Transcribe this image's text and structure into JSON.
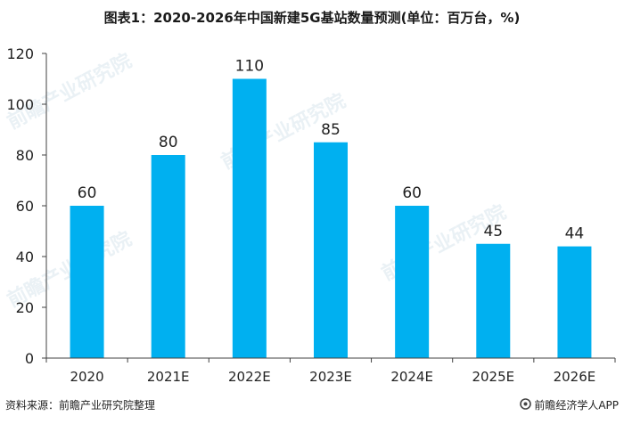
{
  "chart_data": {
    "type": "bar",
    "title": "图表1：2020-2026年中国新建5G基站数量预测(单位：百万台，%)",
    "categories": [
      "2020",
      "2021E",
      "2022E",
      "2023E",
      "2024E",
      "2025E",
      "2026E"
    ],
    "values": [
      60,
      80,
      110,
      85,
      60,
      45,
      44
    ],
    "xlabel": "",
    "ylabel": "",
    "ylim": [
      0,
      120
    ],
    "yticks": [
      0,
      20,
      40,
      60,
      80,
      100,
      120
    ],
    "grid": false,
    "legend": "none",
    "bar_color": "#00b0f0"
  },
  "source": "资料来源：前瞻产业研究院整理",
  "brand": "前瞻经济学人APP",
  "watermark": "前瞻产业研究院"
}
